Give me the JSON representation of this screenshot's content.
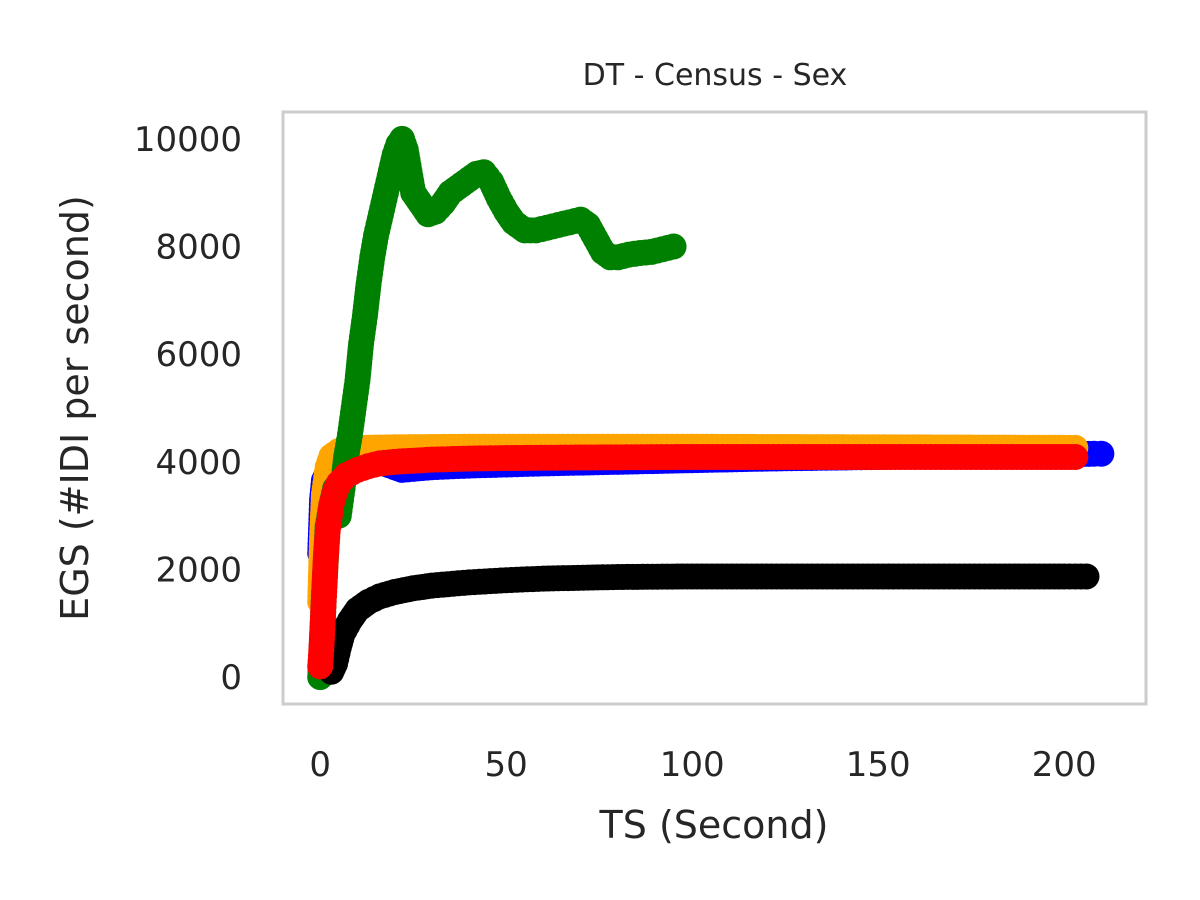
{
  "chart_data": {
    "type": "scatter",
    "title": "DT - Census - Sex",
    "xlabel": "TS (Second)",
    "ylabel": "EGS (#IDI  per second)",
    "xlim": [
      -10,
      222
    ],
    "ylim": [
      -500,
      10500
    ],
    "x_ticks": [
      0,
      50,
      100,
      150,
      200
    ],
    "y_ticks": [
      0,
      2000,
      4000,
      6000,
      8000,
      10000
    ],
    "x_tick_labels": [
      "0",
      "50",
      "100",
      "150",
      "200"
    ],
    "y_tick_labels": [
      "0",
      "2000",
      "4000",
      "6000",
      "8000",
      "10000"
    ],
    "grid": false,
    "legend": "none",
    "series": [
      {
        "color": "#0000ff",
        "points": [
          [
            0,
            2300
          ],
          [
            0.5,
            3300
          ],
          [
            1,
            3650
          ],
          [
            2,
            3800
          ],
          [
            3,
            3850
          ],
          [
            5,
            3900
          ],
          [
            8,
            3950
          ],
          [
            12,
            4000
          ],
          [
            16,
            4000
          ],
          [
            20,
            3900
          ],
          [
            22,
            3850
          ],
          [
            25,
            3870
          ],
          [
            30,
            3900
          ],
          [
            40,
            3930
          ],
          [
            50,
            3950
          ],
          [
            60,
            3970
          ],
          [
            80,
            4000
          ],
          [
            100,
            4030
          ],
          [
            120,
            4060
          ],
          [
            140,
            4080
          ],
          [
            160,
            4100
          ],
          [
            180,
            4120
          ],
          [
            200,
            4140
          ],
          [
            208,
            4150
          ],
          [
            210,
            4150
          ]
        ]
      },
      {
        "color": "#ffa500",
        "points": [
          [
            0,
            1400
          ],
          [
            0.5,
            2600
          ],
          [
            1,
            3400
          ],
          [
            2,
            3900
          ],
          [
            3,
            4100
          ],
          [
            5,
            4200
          ],
          [
            8,
            4240
          ],
          [
            12,
            4260
          ],
          [
            20,
            4270
          ],
          [
            40,
            4280
          ],
          [
            60,
            4280
          ],
          [
            100,
            4280
          ],
          [
            150,
            4270
          ],
          [
            200,
            4260
          ],
          [
            203,
            4260
          ]
        ]
      },
      {
        "color": "#008000",
        "points": [
          [
            0,
            0
          ],
          [
            1,
            1500
          ],
          [
            2,
            2800
          ],
          [
            3,
            3200
          ],
          [
            4,
            3500
          ],
          [
            5,
            3000
          ],
          [
            6,
            3500
          ],
          [
            7,
            4100
          ],
          [
            8,
            4500
          ],
          [
            9,
            5000
          ],
          [
            10,
            5500
          ],
          [
            11,
            6200
          ],
          [
            12,
            6700
          ],
          [
            13,
            7300
          ],
          [
            14,
            7800
          ],
          [
            15,
            8200
          ],
          [
            16,
            8500
          ],
          [
            17,
            8800
          ],
          [
            18,
            9100
          ],
          [
            19,
            9400
          ],
          [
            20,
            9700
          ],
          [
            21,
            9900
          ],
          [
            22,
            10000
          ],
          [
            23,
            9800
          ],
          [
            24,
            9400
          ],
          [
            25,
            9000
          ],
          [
            27,
            8800
          ],
          [
            29,
            8600
          ],
          [
            31,
            8650
          ],
          [
            33,
            8800
          ],
          [
            35,
            9000
          ],
          [
            38,
            9150
          ],
          [
            40,
            9250
          ],
          [
            42,
            9350
          ],
          [
            44,
            9380
          ],
          [
            46,
            9200
          ],
          [
            48,
            8900
          ],
          [
            50,
            8650
          ],
          [
            52,
            8450
          ],
          [
            55,
            8300
          ],
          [
            58,
            8300
          ],
          [
            61,
            8350
          ],
          [
            64,
            8400
          ],
          [
            67,
            8450
          ],
          [
            70,
            8500
          ],
          [
            72,
            8400
          ],
          [
            74,
            8150
          ],
          [
            76,
            7900
          ],
          [
            78,
            7800
          ],
          [
            80,
            7800
          ],
          [
            83,
            7850
          ],
          [
            86,
            7880
          ],
          [
            89,
            7900
          ],
          [
            92,
            7950
          ],
          [
            95,
            8000
          ]
        ]
      },
      {
        "color": "#000000",
        "points": [
          [
            3,
            100
          ],
          [
            4,
            250
          ],
          [
            5,
            550
          ],
          [
            6,
            800
          ],
          [
            8,
            1050
          ],
          [
            10,
            1250
          ],
          [
            13,
            1400
          ],
          [
            16,
            1500
          ],
          [
            20,
            1580
          ],
          [
            25,
            1650
          ],
          [
            30,
            1700
          ],
          [
            40,
            1760
          ],
          [
            50,
            1800
          ],
          [
            60,
            1830
          ],
          [
            80,
            1860
          ],
          [
            100,
            1870
          ],
          [
            120,
            1870
          ],
          [
            150,
            1870
          ],
          [
            180,
            1870
          ],
          [
            200,
            1870
          ],
          [
            206,
            1870
          ]
        ]
      },
      {
        "color": "#ff0000",
        "points": [
          [
            0,
            200
          ],
          [
            0.3,
            500
          ],
          [
            0.6,
            900
          ],
          [
            1,
            1500
          ],
          [
            1.5,
            2200
          ],
          [
            2,
            2700
          ],
          [
            3,
            3200
          ],
          [
            4,
            3450
          ],
          [
            5,
            3600
          ],
          [
            7,
            3750
          ],
          [
            10,
            3850
          ],
          [
            13,
            3920
          ],
          [
            16,
            3970
          ],
          [
            20,
            4000
          ],
          [
            25,
            4020
          ],
          [
            30,
            4040
          ],
          [
            40,
            4060
          ],
          [
            50,
            4070
          ],
          [
            70,
            4080
          ],
          [
            100,
            4090
          ],
          [
            130,
            4090
          ],
          [
            160,
            4090
          ],
          [
            190,
            4090
          ],
          [
            203,
            4090
          ]
        ]
      }
    ]
  }
}
